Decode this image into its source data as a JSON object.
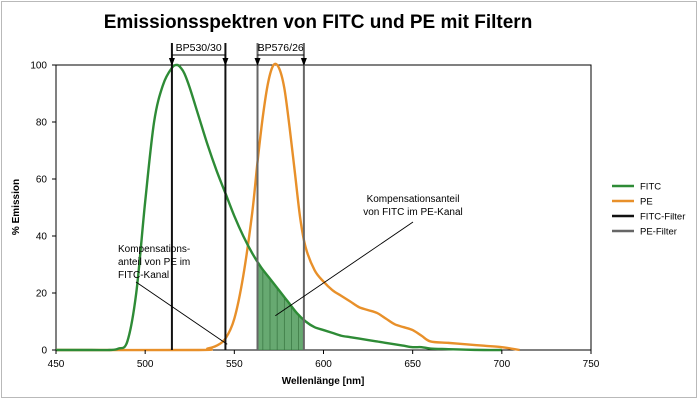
{
  "chart_data": {
    "type": "line",
    "title": "Emissionsspektren von FITC und PE mit Filtern",
    "xlabel": "Wellenlänge [nm]",
    "ylabel": "% Emission",
    "xlim": [
      450,
      750
    ],
    "ylim": [
      0,
      100
    ],
    "x_ticks": [
      450,
      500,
      550,
      600,
      650,
      700,
      750
    ],
    "y_ticks": [
      0,
      20,
      40,
      60,
      80,
      100
    ],
    "grid": false,
    "legend_position": "right",
    "series": [
      {
        "name": "FITC",
        "color": "#2e8b36",
        "x": [
          450,
          470,
          480,
          485,
          490,
          495,
          500,
          505,
          510,
          515,
          518,
          520,
          522,
          525,
          530,
          535,
          540,
          545,
          550,
          555,
          560,
          565,
          570,
          575,
          580,
          585,
          590,
          595,
          600,
          605,
          610,
          615,
          620,
          625,
          630,
          635,
          640,
          645,
          650,
          655,
          660,
          670,
          680,
          690,
          700
        ],
        "y": [
          0,
          0,
          0,
          0.5,
          3,
          20,
          52,
          80,
          93,
          99,
          100,
          99,
          97,
          92,
          82,
          72,
          63,
          55,
          47,
          40,
          34,
          29,
          25,
          21,
          17,
          13,
          10,
          8,
          7,
          6,
          5,
          4.5,
          4,
          3.5,
          3,
          2.5,
          2,
          1.5,
          1,
          1,
          0.5,
          0.3,
          0.1,
          0,
          0
        ]
      },
      {
        "name": "PE",
        "color": "#e8902a",
        "x": [
          450,
          530,
          535,
          540,
          545,
          550,
          555,
          560,
          563,
          566,
          569,
          572,
          575,
          578,
          581,
          584,
          587,
          590,
          595,
          600,
          605,
          610,
          615,
          620,
          625,
          630,
          635,
          640,
          645,
          650,
          655,
          660,
          670,
          680,
          690,
          700,
          705,
          710
        ],
        "y": [
          0,
          0,
          0.5,
          1.5,
          4,
          11,
          26,
          48,
          66,
          82,
          94,
          100,
          99,
          92,
          78,
          62,
          46,
          36,
          28,
          24,
          21,
          19,
          17,
          15,
          14,
          13,
          11,
          9,
          8,
          7,
          5,
          3,
          2.5,
          2,
          1.5,
          1,
          0.5,
          0
        ]
      },
      {
        "name": "FITC-Filter",
        "color": "#111111",
        "x": [
          515,
          545
        ],
        "y": [
          0,
          100
        ]
      },
      {
        "name": "PE-Filter",
        "color": "#666666",
        "x": [
          563,
          589
        ],
        "y": [
          0,
          100
        ]
      }
    ],
    "filters": [
      {
        "label": "BP530/30",
        "from": 515,
        "to": 545
      },
      {
        "label": "BP576/26",
        "from": 563,
        "to": 589
      }
    ],
    "annotations": [
      {
        "lines": [
          "Kompensations-",
          "anteil von PE im",
          "FITC-Kanal"
        ],
        "points_to": [
          546,
          2
        ]
      },
      {
        "lines": [
          "Kompensationsanteil",
          "von FITC im PE-Kanal"
        ],
        "points_to": [
          573,
          12
        ]
      }
    ],
    "shaded_region": {
      "from": 563,
      "to": 589,
      "under": "FITC",
      "color": "#4c9a58"
    }
  }
}
